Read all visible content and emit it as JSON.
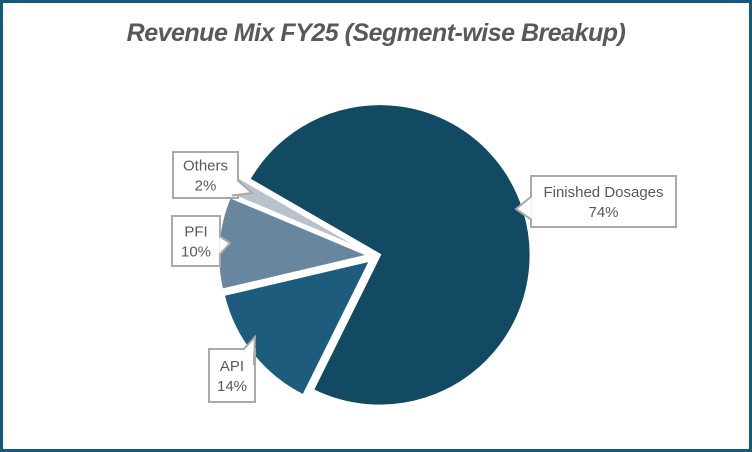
{
  "title": "Revenue Mix FY25 (Segment-wise Breakup)",
  "colors": {
    "frame_border": "#155a7d",
    "background": "#ffffff",
    "slice_separator": "#ffffff",
    "callout_border": "#a9a9a9",
    "callout_fill": "#ffffff",
    "label_text": "#595959",
    "title_text": "#595959"
  },
  "chart_data": {
    "type": "pie",
    "title": "Revenue Mix FY25 (Segment-wise Breakup)",
    "unit": "%",
    "direction": "clockwise",
    "start_angle_deg_from_top": 300,
    "legend": "none",
    "labels_style": "callout boxes with category name and percent",
    "segments": [
      {
        "label": "Finished Dosages",
        "value": 74,
        "pct_label": "74%",
        "color": "#124a63"
      },
      {
        "label": "API",
        "value": 14,
        "pct_label": "14%",
        "color": "#1d5c7d"
      },
      {
        "label": "PFI",
        "value": 10,
        "pct_label": "10%",
        "color": "#68879e"
      },
      {
        "label": "Others",
        "value": 2,
        "pct_label": "2%",
        "color": "#b9c2ca"
      }
    ]
  }
}
